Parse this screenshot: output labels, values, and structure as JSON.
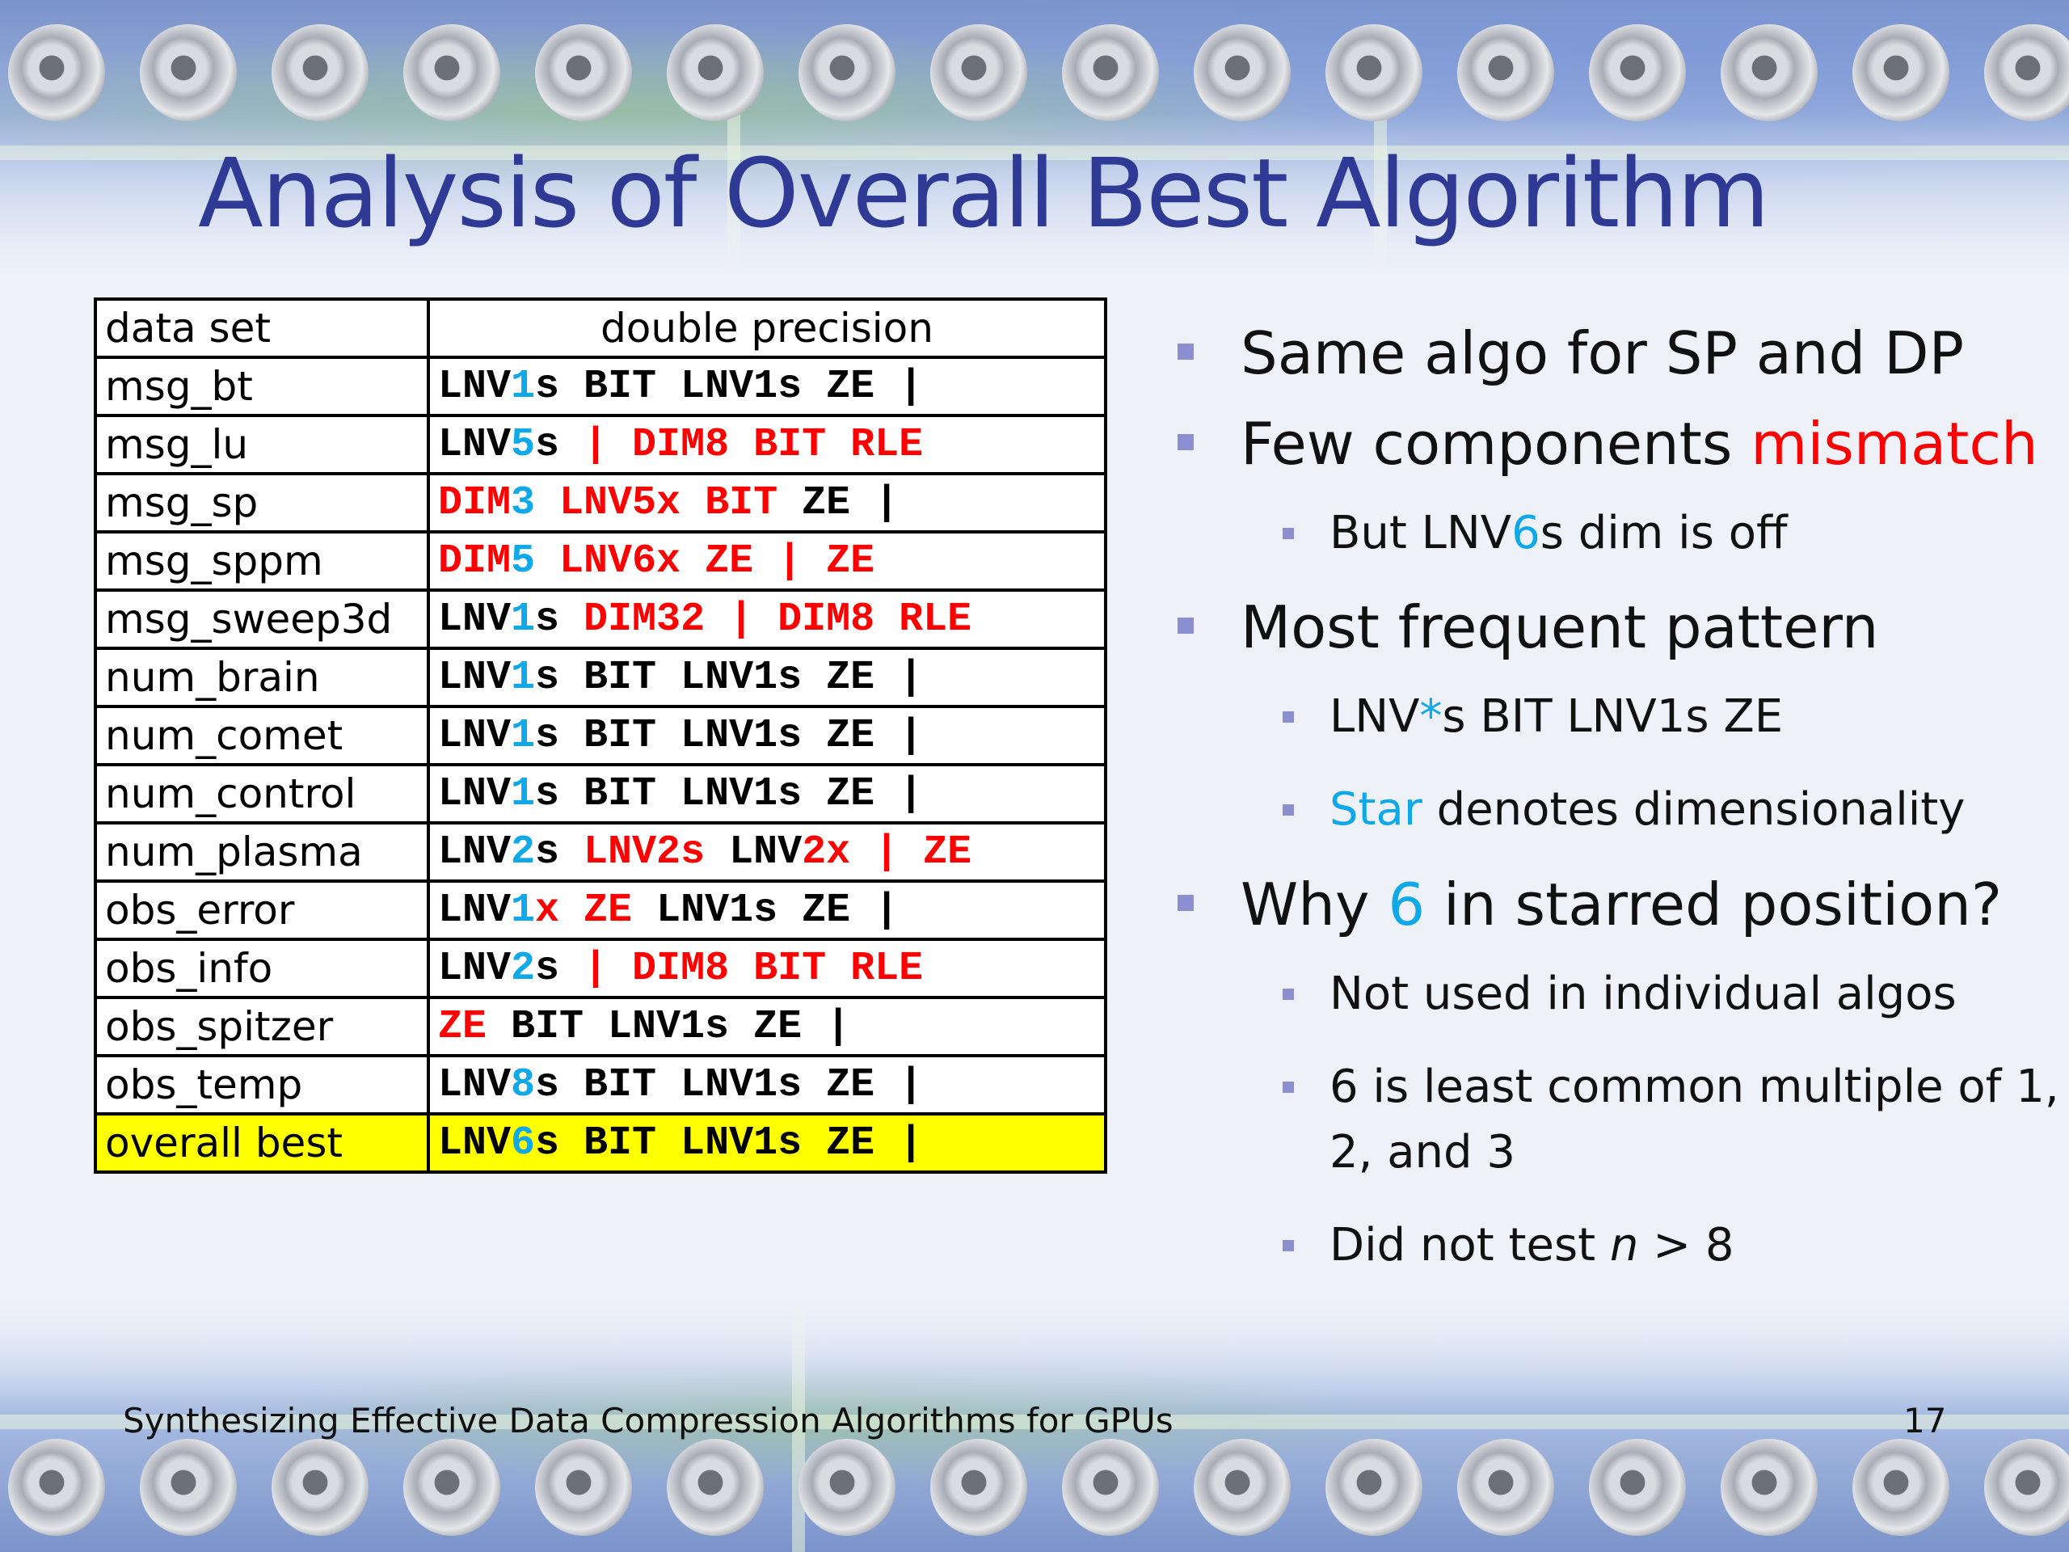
{
  "title": "Analysis of Overall Best Algorithm",
  "table": {
    "header": {
      "dataset": "data set",
      "column": "double precision"
    },
    "rows": [
      {
        "dataset": "msg_bt",
        "algo": [
          [
            "LNV",
            ""
          ],
          [
            "1",
            "cyan"
          ],
          [
            "s BIT LNV1s ZE |",
            ""
          ]
        ]
      },
      {
        "dataset": "msg_lu",
        "algo": [
          [
            "LNV",
            ""
          ],
          [
            "5",
            "cyan"
          ],
          [
            "s ",
            ""
          ],
          [
            "| DIM8 BIT RLE",
            "red"
          ]
        ]
      },
      {
        "dataset": "msg_sp",
        "algo": [
          [
            "DIM",
            "red"
          ],
          [
            "3",
            "cyan"
          ],
          [
            " LNV5x BIT",
            "red"
          ],
          [
            " ZE |",
            ""
          ]
        ]
      },
      {
        "dataset": "msg_sppm",
        "algo": [
          [
            "DIM",
            "red"
          ],
          [
            "5",
            "cyan"
          ],
          [
            " LNV6x ZE | ZE",
            "red"
          ]
        ]
      },
      {
        "dataset": "msg_sweep3d",
        "algo": [
          [
            "LNV",
            ""
          ],
          [
            "1",
            "cyan"
          ],
          [
            "s ",
            ""
          ],
          [
            "DIM32 | DIM8 RLE",
            "red"
          ]
        ]
      },
      {
        "dataset": "num_brain",
        "algo": [
          [
            "LNV",
            ""
          ],
          [
            "1",
            "cyan"
          ],
          [
            "s BIT LNV1s ZE |",
            ""
          ]
        ]
      },
      {
        "dataset": "num_comet",
        "algo": [
          [
            "LNV",
            ""
          ],
          [
            "1",
            "cyan"
          ],
          [
            "s BIT LNV1s ZE |",
            ""
          ]
        ]
      },
      {
        "dataset": "num_control",
        "algo": [
          [
            "LNV",
            ""
          ],
          [
            "1",
            "cyan"
          ],
          [
            "s BIT LNV1s ZE |",
            ""
          ]
        ]
      },
      {
        "dataset": "num_plasma",
        "algo": [
          [
            "LNV",
            ""
          ],
          [
            "2",
            "cyan"
          ],
          [
            "s ",
            ""
          ],
          [
            "LNV2s",
            "red"
          ],
          [
            " LNV",
            ""
          ],
          [
            "2x | ZE",
            "red"
          ]
        ]
      },
      {
        "dataset": "obs_error",
        "algo": [
          [
            "LNV",
            ""
          ],
          [
            "1",
            "cyan"
          ],
          [
            "x ZE",
            "red"
          ],
          [
            " LNV1s ZE |",
            ""
          ]
        ]
      },
      {
        "dataset": "obs_info",
        "algo": [
          [
            "LNV",
            ""
          ],
          [
            "2",
            "cyan"
          ],
          [
            "s ",
            ""
          ],
          [
            "| DIM8 BIT RLE",
            "red"
          ]
        ]
      },
      {
        "dataset": "obs_spitzer",
        "algo": [
          [
            "ZE",
            "red"
          ],
          [
            " BIT LNV1s ZE |",
            ""
          ]
        ]
      },
      {
        "dataset": "obs_temp",
        "algo": [
          [
            "LNV",
            ""
          ],
          [
            "8",
            "cyan"
          ],
          [
            "s BIT LNV1s ZE |",
            ""
          ]
        ]
      },
      {
        "dataset": "overall best",
        "algo": [
          [
            "LNV",
            ""
          ],
          [
            "6",
            "cyan"
          ],
          [
            "s BIT LNV1s ZE |",
            ""
          ]
        ],
        "highlight": true
      }
    ]
  },
  "bullets": [
    {
      "level": 1,
      "parts": [
        [
          "Same algo for SP and DP",
          ""
        ]
      ]
    },
    {
      "level": 1,
      "parts": [
        [
          "Few components ",
          ""
        ],
        [
          "mismatch",
          "red"
        ]
      ]
    },
    {
      "level": 2,
      "parts": [
        [
          "But LNV",
          ""
        ],
        [
          "6",
          "cyan"
        ],
        [
          "s dim is off",
          ""
        ]
      ]
    },
    {
      "level": 1,
      "parts": [
        [
          "Most frequent pattern",
          ""
        ]
      ]
    },
    {
      "level": 2,
      "parts": [
        [
          "LNV",
          ""
        ],
        [
          "*",
          "cyan"
        ],
        [
          "s BIT LNV1s ZE",
          ""
        ]
      ]
    },
    {
      "level": 2,
      "parts": [
        [
          "Star",
          "cyan"
        ],
        [
          " denotes dimensionality",
          ""
        ]
      ]
    },
    {
      "level": 1,
      "parts": [
        [
          "Why ",
          ""
        ],
        [
          "6",
          "cyan"
        ],
        [
          " in starred position?",
          ""
        ]
      ]
    },
    {
      "level": 2,
      "parts": [
        [
          "Not used in individual algos",
          ""
        ]
      ]
    },
    {
      "level": 2,
      "multi": true,
      "parts": [
        [
          "6 is least common multiple of 1, 2, and 3",
          ""
        ]
      ]
    },
    {
      "level": 2,
      "parts": [
        [
          "Did not test ",
          ""
        ],
        [
          "n",
          "italic"
        ],
        [
          " > 8",
          ""
        ]
      ]
    }
  ],
  "footer": {
    "text": "Synthesizing Effective Data Compression Algorithms for GPUs",
    "page": "17"
  },
  "colors": {
    "title": "#2e3a94",
    "mismatch": "#ff0000",
    "accent": "#0fa8e8",
    "highlight": "#ffff00",
    "bullet": "#8b8fd0"
  }
}
